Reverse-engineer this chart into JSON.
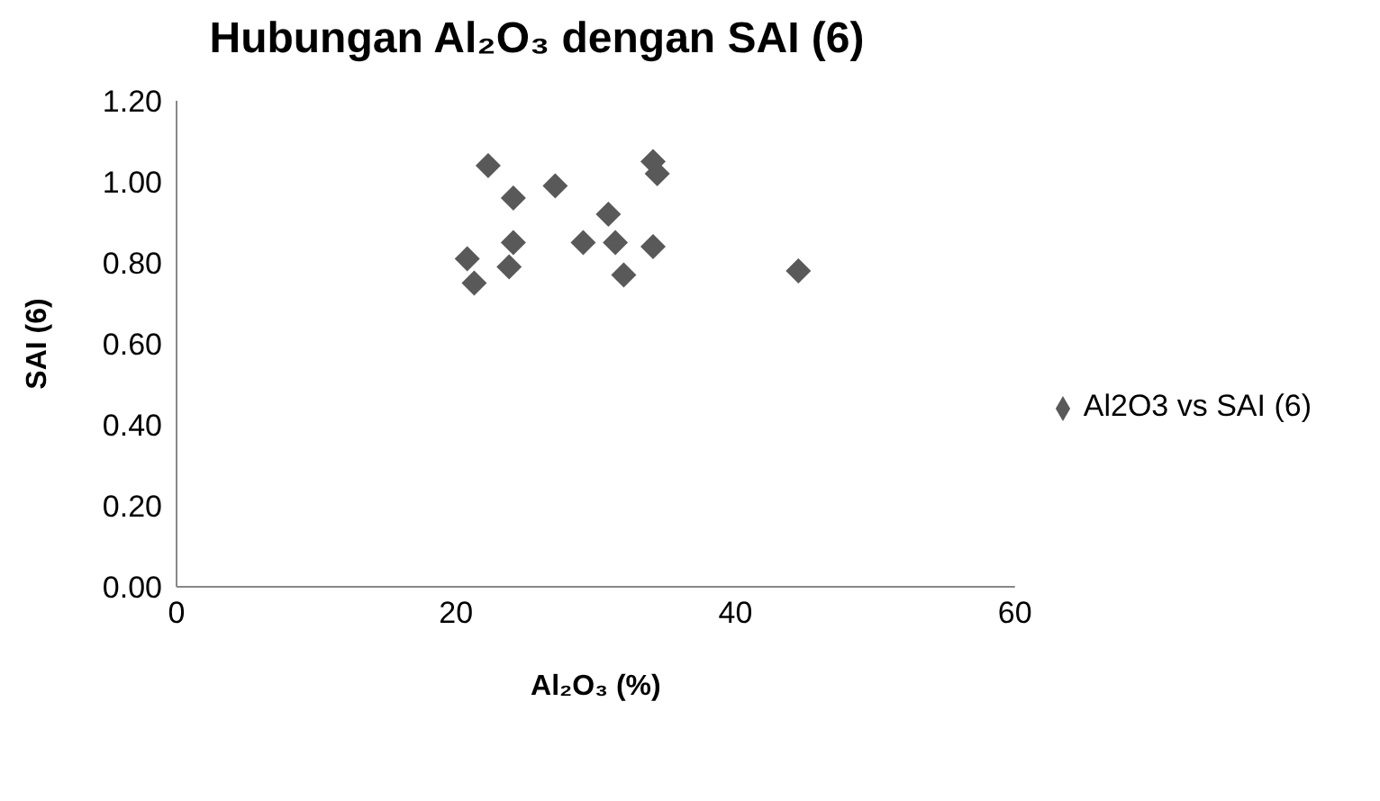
{
  "chart_data": {
    "type": "scatter",
    "title": "Hubungan Al₂O₃ dengan SAI (6)",
    "xlabel": "Al₂O₃ (%)",
    "ylabel": "SAI (6)",
    "x": [
      22.3,
      24.1,
      27.1,
      34.1,
      34.4,
      30.9,
      24.1,
      29.1,
      31.4,
      34.1,
      20.8,
      23.8,
      21.3,
      32.0,
      44.5
    ],
    "series": [
      {
        "name": "Al2O3 vs SAI (6)",
        "color": "#595959",
        "values": [
          1.04,
          0.96,
          0.99,
          1.05,
          1.02,
          0.92,
          0.85,
          0.85,
          0.85,
          0.84,
          0.81,
          0.79,
          0.75,
          0.77,
          0.78
        ]
      }
    ],
    "xlim": [
      0,
      60
    ],
    "xticks": [
      0,
      20,
      40,
      60
    ],
    "ylim": [
      0,
      1.2
    ],
    "yticks": [
      {
        "value": 0,
        "label": "0.00"
      },
      {
        "value": 0.2,
        "label": "0.20"
      },
      {
        "value": 0.4,
        "label": "0.40"
      },
      {
        "value": 0.6,
        "label": "0.60"
      },
      {
        "value": 0.8,
        "label": "0.80"
      },
      {
        "value": 1.0,
        "label": "1.00"
      },
      {
        "value": 1.2,
        "label": "1.20"
      }
    ],
    "grid": false,
    "legend": "right",
    "marker": "diamond"
  }
}
